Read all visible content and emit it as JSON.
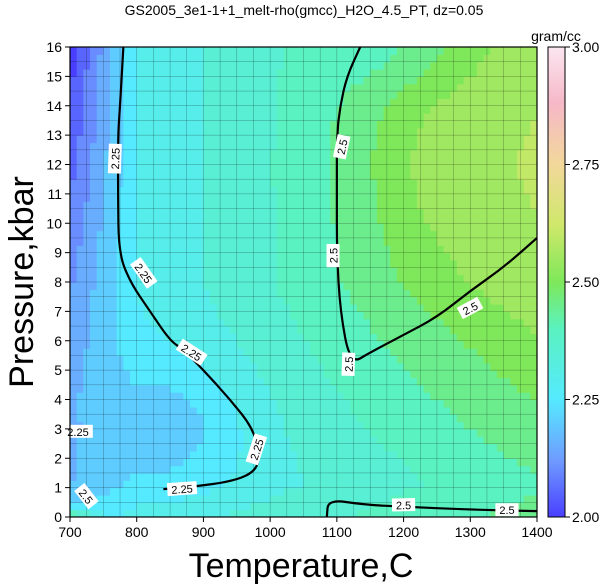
{
  "chart_data": {
    "type": "heatmap",
    "title": "GS2005_3e1-1+1_melt-rho(gmcc)_H2O_4.5_PT, dz=0.05",
    "xlabel": "Temperature,C",
    "ylabel": "Pressure,kbar",
    "xlim": [
      700,
      1400
    ],
    "ylim": [
      0,
      16
    ],
    "x_ticks": [
      700,
      800,
      900,
      1000,
      1100,
      1200,
      1300,
      1400
    ],
    "y_ticks": [
      0,
      1,
      2,
      3,
      4,
      5,
      6,
      7,
      8,
      9,
      10,
      11,
      12,
      13,
      14,
      15,
      16
    ],
    "grid": true,
    "colorbar": {
      "unit": "gram/cc",
      "range": [
        2.0,
        3.0
      ],
      "ticks": [
        "2.00",
        "2.25",
        "2.50",
        "2.75",
        "3.00"
      ],
      "tick_values": [
        2.0,
        2.25,
        2.5,
        2.75,
        3.0
      ]
    },
    "contour_interval": 0.05,
    "labeled_contours": [
      {
        "value": 2.25,
        "points": [
          [
            780,
            16
          ],
          [
            775,
            14
          ],
          [
            772,
            13
          ],
          [
            772,
            11
          ],
          [
            773,
            9
          ],
          [
            790,
            8
          ],
          [
            820,
            7
          ],
          [
            850,
            6
          ],
          [
            870,
            5.7
          ],
          [
            900,
            5
          ],
          [
            940,
            4
          ],
          [
            975,
            3
          ],
          [
            985,
            2
          ],
          [
            975,
            1.5
          ],
          [
            940,
            1.2
          ],
          [
            880,
            1.02
          ],
          [
            840,
            0.95
          ]
        ]
      },
      {
        "value": 2.5,
        "points": [
          [
            1135,
            16
          ],
          [
            1115,
            15
          ],
          [
            1105,
            14
          ],
          [
            1100,
            13
          ],
          [
            1100,
            11
          ],
          [
            1100,
            9
          ],
          [
            1105,
            7
          ],
          [
            1120,
            5.2
          ],
          [
            1150,
            5.6
          ],
          [
            1200,
            6.2
          ],
          [
            1250,
            6.8
          ],
          [
            1300,
            7.7
          ],
          [
            1350,
            8.5
          ],
          [
            1400,
            9.5
          ]
        ]
      },
      {
        "value": 2.5,
        "points": [
          [
            1085,
            0
          ],
          [
            1087,
            0.6
          ],
          [
            1140,
            0.42
          ],
          [
            1200,
            0.35
          ],
          [
            1300,
            0.25
          ],
          [
            1400,
            0.2
          ]
        ]
      }
    ],
    "contour_labels": [
      {
        "text": "2.25",
        "x": 768,
        "y": 12.2,
        "angle": -88
      },
      {
        "text": "2.25",
        "x": 810,
        "y": 8.3,
        "angle": 55
      },
      {
        "text": "2.25",
        "x": 882,
        "y": 5.6,
        "angle": 33
      },
      {
        "text": "2.25",
        "x": 980,
        "y": 2.3,
        "angle": -72
      },
      {
        "text": "2.25",
        "x": 868,
        "y": 0.95,
        "angle": -4
      },
      {
        "text": "2.25",
        "x": 712,
        "y": 2.9,
        "angle": 0
      },
      {
        "text": "2.5",
        "x": 1108,
        "y": 12.6,
        "angle": -78
      },
      {
        "text": "2.5",
        "x": 1095,
        "y": 8.9,
        "angle": -90
      },
      {
        "text": "2.5",
        "x": 1118,
        "y": 5.2,
        "angle": -88
      },
      {
        "text": "2.5",
        "x": 1300,
        "y": 7.1,
        "angle": -28
      },
      {
        "text": "2.5",
        "x": 1200,
        "y": 0.4,
        "angle": -1
      },
      {
        "text": "2.5",
        "x": 1355,
        "y": 0.23,
        "angle": 0
      },
      {
        "text": "2.5",
        "x": 724,
        "y": 0.7,
        "angle": 52
      }
    ]
  }
}
